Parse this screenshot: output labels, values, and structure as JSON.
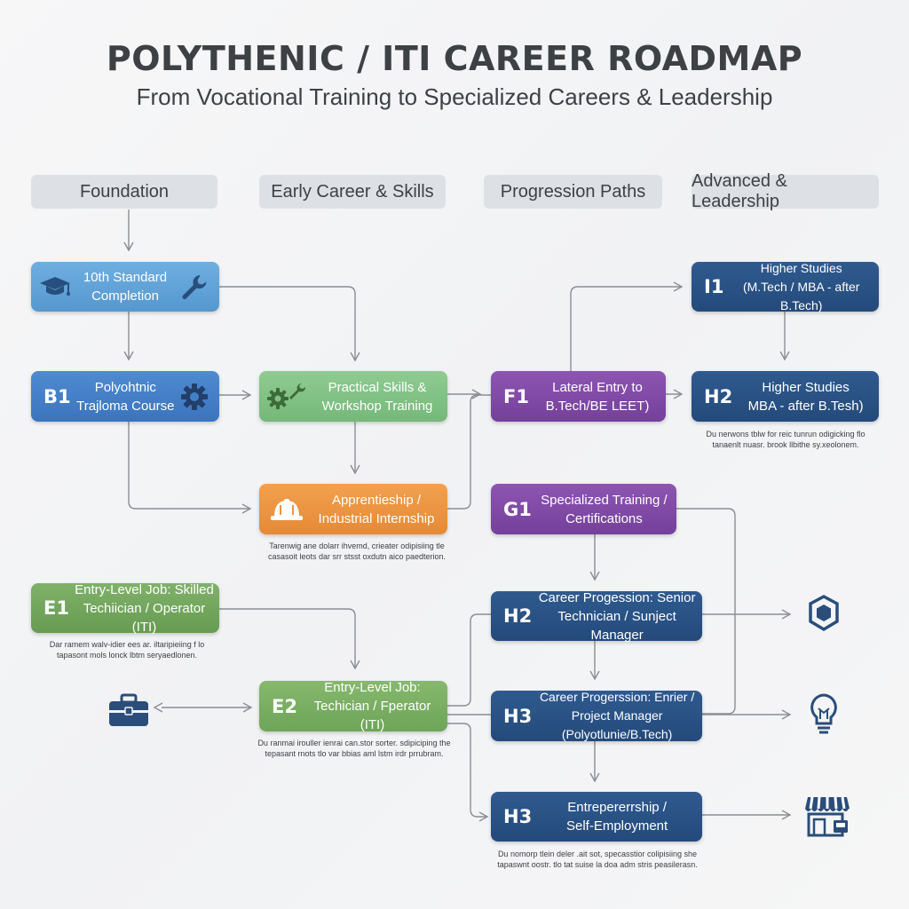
{
  "title": "POLYTHENIC / ITI CAREER ROADMAP",
  "subtitle": "From Vocational Training to Specialized Careers & Leadership",
  "columns": [
    "Foundation",
    "Early Career & Skills",
    "Progression Paths",
    "Advanced & Leadership"
  ],
  "nodes": {
    "n10th": {
      "tag": "",
      "text": "10th Standard\nCompletion"
    },
    "b1": {
      "tag": "B1",
      "text": "Polyohtnic\nTrajloma Course"
    },
    "practical": {
      "tag": "",
      "text": "Practical Skills &\nWorkshop Training"
    },
    "apprentice": {
      "tag": "",
      "text": "Apprentieship /\nIndustrial Internship"
    },
    "e1": {
      "tag": "E1",
      "text": "Entry-Level Job: Skilled\nTechiician / Operator (ITI)"
    },
    "e2": {
      "tag": "E2",
      "text": "Entry-Level Job:\nTechician / Fperator (ITI)"
    },
    "f1": {
      "tag": "F1",
      "text": "Lateral Entry to\nB.Tech/BE LEET)"
    },
    "g1": {
      "tag": "G1",
      "text": "Specialized Training /\nCertifications"
    },
    "i1": {
      "tag": "I1",
      "text": "Higher Studies\n(M.Tech / MBA - after B.Tech)"
    },
    "h2a": {
      "tag": "H2",
      "text": "Higher Studies\nMBA - after B.Tesh)"
    },
    "h2b": {
      "tag": "H2",
      "text": "Career Progession: Senior\nTechnician / Sunject Manager"
    },
    "h3a": {
      "tag": "H3",
      "text": "Career Progerssion: Enrier /\nProject Manager (Polyotlunie/B.Tech)"
    },
    "h3b": {
      "tag": "H3",
      "text": "Entrepererrship /\nSelf-Employment"
    }
  },
  "notes": {
    "apprentice": "Tarenwig ane dolarr ihvemd, crieater odipisiing tle\ncasasoit leots dar srr stsst oxdutn aico paedterion.",
    "e1": "Dar ramem walv-idier ees ar. iltaripieiing f lo\ntapasont mols lonck lbtm seryaedlonen.",
    "e2": "Du ranmai irouller ienrai can.stor sorter. sdipiciping the\ntepasant rnots tlo var bbias aml lstm irdr prrubram.",
    "h2a": "Du nerwons tblw for reic tunrun odigicking flo\ntanaenlt nuasr. brook llbithe sy.xeolonem.",
    "h3b": "Du nomorp tlein deler .ait sot, specasstior colipisiing she\ntapaswnt oostr. tlo tat suise la doa adm stris peasilerasn."
  },
  "icons": {
    "n10th_left": "graduation-cap-icon",
    "n10th_right": "wrench-icon",
    "b1": "gear-icon",
    "practical": "gears-wrench-icon",
    "apprentice": "hard-hat-icon",
    "side_toolbox": "toolbox-icon",
    "side_shield": "shield-badge-icon",
    "side_bulb": "lightbulb-icon",
    "side_store": "storefront-icon"
  },
  "colors": {
    "light_blue": "#5fa2d8",
    "blue": "#4580c7",
    "green": "#82c185",
    "orange": "#ec9542",
    "olive": "#73a65d",
    "purple": "#8048a6",
    "navy": "#2a5285",
    "connector": "#8a8e93"
  }
}
